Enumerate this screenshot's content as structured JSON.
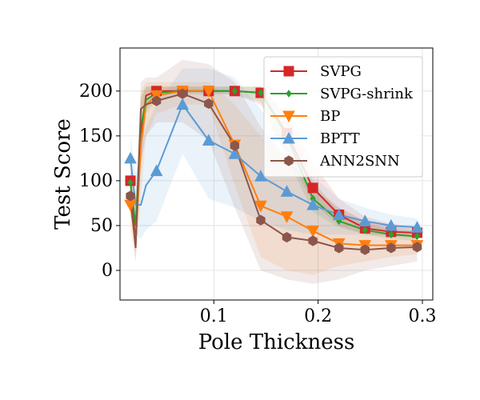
{
  "chart_data": {
    "type": "line",
    "title": "",
    "xlabel": "Pole Thickness",
    "ylabel": "Test Score",
    "xlim": [
      0.01,
      0.31
    ],
    "ylim": [
      -33,
      248
    ],
    "xticks": [
      0.1,
      0.2,
      0.3
    ],
    "xtick_labels": [
      "0.1",
      "0.2",
      "0.3"
    ],
    "yticks": [
      0,
      50,
      100,
      150,
      200
    ],
    "ytick_labels": [
      "0",
      "50",
      "100",
      "150",
      "200"
    ],
    "grid": true,
    "legend_position": "top-right",
    "x": [
      0.02,
      0.025,
      0.03,
      0.035,
      0.045,
      0.07,
      0.095,
      0.12,
      0.145,
      0.17,
      0.195,
      0.22,
      0.245,
      0.27,
      0.295
    ],
    "series": [
      {
        "name": "SVPG",
        "color": "#d62728",
        "marker": "square",
        "values": [
          100,
          30,
          150,
          195,
          200,
          200,
          200,
          200,
          198,
          153,
          92,
          62,
          47,
          43,
          42
        ],
        "upper": [
          115,
          70,
          190,
          205,
          205,
          205,
          205,
          205,
          205,
          175,
          120,
          80,
          60,
          52,
          48
        ],
        "lower": [
          85,
          20,
          110,
          180,
          195,
          198,
          198,
          196,
          185,
          130,
          75,
          50,
          40,
          38,
          36
        ],
        "marker_indices": [
          0,
          4,
          5,
          6,
          7,
          8,
          9,
          10,
          11,
          12,
          13,
          14
        ]
      },
      {
        "name": "SVPG-shrink",
        "color": "#2ca02c",
        "marker": "diamond",
        "values": [
          98,
          50,
          160,
          190,
          198,
          200,
          200,
          200,
          198,
          150,
          80,
          55,
          45,
          40,
          38
        ],
        "upper": [
          110,
          80,
          195,
          205,
          205,
          205,
          205,
          205,
          205,
          170,
          100,
          65,
          52,
          46,
          44
        ],
        "lower": [
          85,
          30,
          125,
          175,
          190,
          196,
          196,
          196,
          188,
          125,
          65,
          48,
          40,
          35,
          33
        ],
        "marker_indices": [
          0,
          4,
          5,
          6,
          7,
          8,
          9,
          10,
          11,
          12,
          13,
          14
        ]
      },
      {
        "name": "BP",
        "color": "#ff7f0e",
        "marker": "triangle-down",
        "values": [
          73,
          30,
          140,
          185,
          195,
          200,
          200,
          140,
          72,
          60,
          44,
          30,
          28,
          28,
          28
        ],
        "upper": [
          95,
          70,
          200,
          210,
          210,
          210,
          210,
          185,
          150,
          125,
          95,
          70,
          55,
          45,
          40
        ],
        "lower": [
          45,
          10,
          80,
          150,
          175,
          185,
          185,
          95,
          15,
          0,
          -5,
          5,
          10,
          15,
          18
        ],
        "marker_indices": [
          0,
          4,
          5,
          6,
          7,
          8,
          9,
          10,
          11,
          12,
          13,
          14
        ]
      },
      {
        "name": "BPTT",
        "color": "#5b9bd5",
        "marker": "triangle-up",
        "values": [
          125,
          73,
          73,
          95,
          111,
          185,
          145,
          130,
          105,
          88,
          73,
          62,
          55,
          50,
          48
        ],
        "upper": [
          150,
          110,
          130,
          160,
          185,
          225,
          225,
          215,
          180,
          140,
          105,
          80,
          70,
          62,
          58
        ],
        "lower": [
          100,
          40,
          35,
          45,
          55,
          130,
          80,
          70,
          55,
          45,
          40,
          40,
          40,
          40,
          40
        ],
        "marker_indices": [
          0,
          4,
          5,
          6,
          7,
          8,
          9,
          10,
          11,
          12,
          13,
          14
        ]
      },
      {
        "name": "ANN2SNN",
        "color": "#8c564b",
        "marker": "hexagon",
        "values": [
          83,
          25,
          180,
          185,
          189,
          197,
          186,
          139,
          56,
          37,
          33,
          25,
          23,
          25,
          26
        ],
        "upper": [
          95,
          60,
          210,
          215,
          215,
          235,
          230,
          210,
          160,
          125,
          90,
          70,
          55,
          50,
          45
        ],
        "lower": [
          65,
          10,
          120,
          150,
          165,
          165,
          145,
          70,
          0,
          -10,
          -15,
          -10,
          0,
          5,
          10
        ],
        "marker_indices": [
          0,
          4,
          5,
          6,
          7,
          8,
          9,
          10,
          11,
          12,
          13,
          14
        ]
      }
    ]
  }
}
